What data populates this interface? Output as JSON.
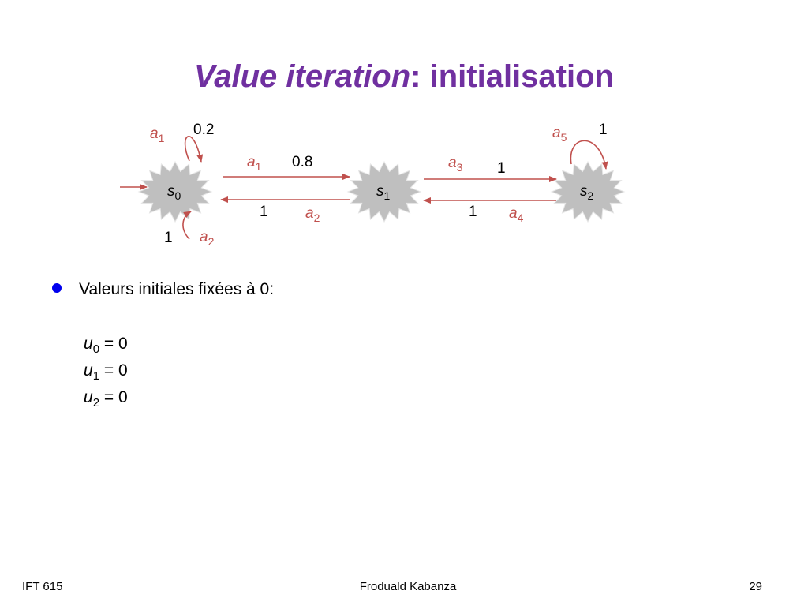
{
  "title": {
    "italic": "Value iteration",
    "rest": ": initialisation"
  },
  "nodes": [
    {
      "name": "s",
      "sub": "0"
    },
    {
      "name": "s",
      "sub": "1"
    },
    {
      "name": "s",
      "sub": "2"
    }
  ],
  "edges": [
    {
      "action": "a",
      "sub": "1",
      "prob": 0.2
    },
    {
      "action": "a",
      "sub": "1",
      "prob": 0.8
    },
    {
      "action": "a",
      "sub": "2",
      "prob": 1
    },
    {
      "action": "a",
      "sub": "2",
      "prob": 1
    },
    {
      "action": "a",
      "sub": "3",
      "prob": 1
    },
    {
      "action": "a",
      "sub": "4",
      "prob": 1
    },
    {
      "action": "a",
      "sub": "5",
      "prob": 1
    }
  ],
  "bullet": "Valeurs initiales fixées à 0:",
  "values": [
    {
      "var": "u",
      "sub": "0",
      "rest": " = 0"
    },
    {
      "var": "u",
      "sub": "1",
      "rest": " = 0"
    },
    {
      "var": "u",
      "sub": "2",
      "rest": " = 0"
    }
  ],
  "footer": {
    "left": "IFT 615",
    "center": "Froduald Kabanza",
    "right": 29
  }
}
